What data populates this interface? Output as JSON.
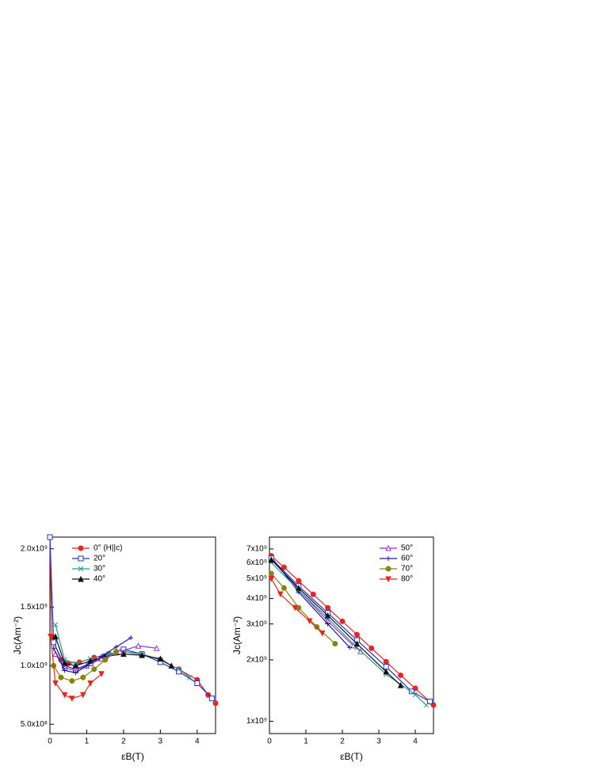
{
  "chart_data": [
    {
      "type": "line",
      "xlabel": "εB(T)",
      "ylabel": "Jc(Am⁻²)",
      "log_y": false,
      "legend": "upper left",
      "xlim": [
        0,
        4.5
      ],
      "xticks": [
        0,
        1,
        2,
        3,
        4
      ],
      "ylim": [
        420000000,
        2100000000
      ],
      "yticks": [
        {
          "value": 500000000,
          "label": "5.0x10⁸"
        },
        {
          "value": 1000000000,
          "label": "1.0x10⁹"
        },
        {
          "value": 1500000000,
          "label": "1.5x10⁹"
        },
        {
          "value": 2000000000,
          "label": "2.0x10⁹"
        }
      ],
      "series": [
        {
          "name": "0° (H||c)",
          "color": "#e8251f",
          "marker": "circle",
          "x": [
            0,
            0.05,
            0.3,
            0.5,
            0.8,
            1.2,
            1.6,
            2.0,
            2.5,
            3.0,
            3.5,
            4.0,
            4.3,
            4.5
          ],
          "values": [
            2100000000.0,
            1250000000.0,
            1050000000.0,
            1020000000.0,
            1030000000.0,
            1070000000.0,
            1100000000.0,
            1120000000.0,
            1100000000.0,
            1050000000.0,
            970000000.0,
            880000000.0,
            750000000.0,
            680000000.0
          ]
        },
        {
          "name": "20°",
          "color": "#2233cc",
          "marker": "square",
          "x": [
            0,
            0.1,
            0.4,
            0.7,
            1.1,
            1.5,
            2.0,
            2.5,
            3.0,
            3.5,
            4.0,
            4.4
          ],
          "values": [
            2100000000.0,
            1200000000.0,
            1000000000.0,
            970000000.0,
            1020000000.0,
            1080000000.0,
            1140000000.0,
            1100000000.0,
            1030000000.0,
            950000000.0,
            850000000.0,
            720000000.0
          ]
        },
        {
          "name": "30°",
          "color": "#2a9a8a",
          "marker": "x",
          "x": [
            0.15,
            0.4,
            0.7,
            1.1,
            1.6,
            2.0,
            2.5,
            3.0,
            3.5,
            3.8
          ],
          "values": [
            1350000000.0,
            1050000000.0,
            1020000000.0,
            1060000000.0,
            1100000000.0,
            1120000000.0,
            1100000000.0,
            1050000000.0,
            970000000.0,
            900000000.0
          ]
        },
        {
          "name": "40°",
          "color": "#111111",
          "marker": "triangle",
          "x": [
            0.15,
            0.4,
            0.7,
            1.1,
            1.5,
            2.0,
            2.5,
            3.0,
            3.3
          ],
          "values": [
            1250000000.0,
            1020000000.0,
            1000000000.0,
            1040000000.0,
            1080000000.0,
            1100000000.0,
            1090000000.0,
            1060000000.0,
            1000000000.0
          ]
        },
        {
          "color": "#9933cc",
          "marker": "opentriangle",
          "x": [
            0.15,
            0.4,
            0.7,
            1.0,
            1.4,
            1.9,
            2.4,
            2.9
          ],
          "values": [
            1100000000.0,
            980000000.0,
            960000000.0,
            1000000000.0,
            1060000000.0,
            1120000000.0,
            1170000000.0,
            1150000000.0
          ]
        },
        {
          "color": "#1a1a99",
          "marker": "plus",
          "x": [
            0.1,
            0.4,
            0.7,
            1.0,
            1.4,
            1.8,
            2.2
          ],
          "values": [
            1150000000.0,
            960000000.0,
            940000000.0,
            1000000000.0,
            1080000000.0,
            1160000000.0,
            1240000000.0
          ]
        },
        {
          "color": "#858510",
          "marker": "circle",
          "x": [
            0.1,
            0.3,
            0.6,
            0.9,
            1.2,
            1.5,
            1.8
          ],
          "values": [
            1000000000.0,
            900000000.0,
            870000000.0,
            900000000.0,
            970000000.0,
            1050000000.0,
            1120000000.0
          ]
        },
        {
          "color": "#e8251f",
          "marker": "downtriangle",
          "x": [
            0.02,
            0.15,
            0.4,
            0.6,
            0.9,
            1.1,
            1.4
          ],
          "values": [
            1250000000.0,
            850000000.0,
            750000000.0,
            720000000.0,
            750000000.0,
            850000000.0,
            930000000.0
          ]
        }
      ]
    },
    {
      "type": "line",
      "xlabel": "εB(T)",
      "ylabel": "Jc(Am⁻²)",
      "log_y": true,
      "legend": "upper right",
      "xlim": [
        0,
        4.5
      ],
      "xticks": [
        0,
        1,
        2,
        3,
        4
      ],
      "ylim": [
        870000000,
        8000000000
      ],
      "yticks": [
        {
          "value": 1000000000,
          "label": "1x10⁹"
        },
        {
          "value": 2000000000,
          "label": "2x10⁹"
        },
        {
          "value": 3000000000,
          "label": "3x10⁹"
        },
        {
          "value": 4000000000,
          "label": "4x10⁹"
        },
        {
          "value": 5000000000,
          "label": "5x10⁹"
        },
        {
          "value": 6000000000,
          "label": "6x10⁹"
        },
        {
          "value": 7000000000,
          "label": "7x10⁹"
        }
      ],
      "series": [
        {
          "name": "50°",
          "color": "#9933cc",
          "marker": "opentriangle",
          "x": [
            0.05,
            0.8,
            1.6,
            2.3,
            2.5
          ],
          "values": [
            6300000000.0,
            4400000000.0,
            3100000000.0,
            2350000000.0,
            2200000000.0
          ]
        },
        {
          "name": "60°",
          "color": "#1a1a99",
          "marker": "plus",
          "x": [
            0.05,
            0.8,
            1.6,
            2.2
          ],
          "values": [
            6400000000.0,
            4300000000.0,
            3000000000.0,
            2300000000.0
          ]
        },
        {
          "name": "70°",
          "color": "#858510",
          "marker": "circle",
          "x": [
            0.05,
            0.4,
            0.8,
            1.3,
            1.8
          ],
          "values": [
            5300000000.0,
            4500000000.0,
            3600000000.0,
            2900000000.0,
            2400000000.0
          ]
        },
        {
          "name": "80°",
          "color": "#e8251f",
          "marker": "downtriangle",
          "x": [
            0.05,
            0.3,
            0.7,
            1.1,
            1.45
          ],
          "values": [
            5000000000.0,
            4200000000.0,
            3600000000.0,
            3100000000.0,
            2700000000.0
          ]
        },
        {
          "color": "#e8251f",
          "marker": "circle",
          "x": [
            0.05,
            0.4,
            0.8,
            1.2,
            1.6,
            2.0,
            2.4,
            2.8,
            3.2,
            3.6,
            4.0,
            4.5
          ],
          "values": [
            6480000000.0,
            5690000000.0,
            4880000000.0,
            4190000000.0,
            3600000000.0,
            3090000000.0,
            2660000000.0,
            2280000000.0,
            1960000000.0,
            1680000000.0,
            1450000000.0,
            1200000000.0
          ]
        },
        {
          "color": "#2233cc",
          "marker": "square",
          "x": [
            0.05,
            0.8,
            1.6,
            2.4,
            3.2,
            3.9,
            4.4
          ],
          "values": [
            6300000000.0,
            4600000000.0,
            3400000000.0,
            2500000000.0,
            1850000000.0,
            1400000000.0,
            1250000000.0
          ]
        },
        {
          "color": "#2a9a8a",
          "marker": "x",
          "x": [
            0.05,
            0.8,
            1.6,
            2.4,
            3.2,
            4.0,
            4.3
          ],
          "values": [
            6000000000.0,
            4400000000.0,
            3200000000.0,
            2300000000.0,
            1700000000.0,
            1350000000.0,
            1200000000.0
          ]
        },
        {
          "color": "#111111",
          "marker": "triangle",
          "x": [
            0.05,
            0.8,
            1.6,
            2.4,
            3.2,
            3.6
          ],
          "values": [
            6200000000.0,
            4500000000.0,
            3300000000.0,
            2400000000.0,
            1750000000.0,
            1500000000.0
          ]
        }
      ]
    }
  ]
}
